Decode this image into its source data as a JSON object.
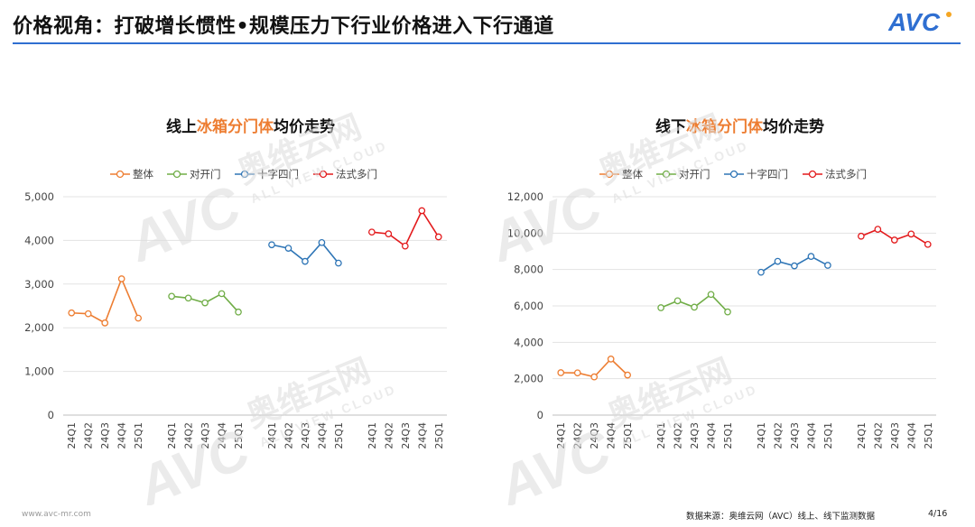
{
  "header": {
    "title": "价格视角：打破增长惯性•规模压力下行业价格进入下行通道",
    "logo_text": "AVC"
  },
  "watermark": {
    "brand_cn": "奥维云网",
    "brand_en": "ALL VIEW CLOUD",
    "logo_text": "AVC"
  },
  "footer": {
    "website": "www.avc-mr.com",
    "source": "数据来源：奥维云网（AVC）线上、线下监测数据",
    "page": "4/16"
  },
  "colors": {
    "accent_blue": "#2f6fd1",
    "series": [
      "#ed7d31",
      "#70ad47",
      "#2e75b6",
      "#e31a1c"
    ],
    "title_highlight": "#ed7d31"
  },
  "chart_data": [
    {
      "type": "line",
      "title_parts": [
        "线上",
        "冰箱分门体",
        "均价走势"
      ],
      "categories": [
        "24Q1",
        "24Q2",
        "24Q3",
        "24Q4",
        "25Q1"
      ],
      "ylim": [
        0,
        5000
      ],
      "yticks": [
        0,
        1000,
        2000,
        3000,
        4000,
        5000
      ],
      "ytick_labels": [
        "0",
        "1,000",
        "2,000",
        "3,000",
        "4,000",
        "5,000"
      ],
      "grid": true,
      "legend": "top",
      "series": [
        {
          "name": "整体",
          "values": [
            2340,
            2320,
            2110,
            3120,
            2220
          ]
        },
        {
          "name": "对开门",
          "values": [
            2720,
            2680,
            2570,
            2780,
            2360
          ]
        },
        {
          "name": "十字四门",
          "values": [
            3900,
            3820,
            3520,
            3950,
            3480
          ]
        },
        {
          "name": "法式多门",
          "values": [
            4190,
            4150,
            3870,
            4680,
            4080
          ]
        }
      ]
    },
    {
      "type": "line",
      "title_parts": [
        "线下",
        "冰箱分门体",
        "均价走势"
      ],
      "categories": [
        "24Q1",
        "24Q2",
        "24Q3",
        "24Q4",
        "25Q1"
      ],
      "ylim": [
        0,
        12000
      ],
      "yticks": [
        0,
        2000,
        4000,
        6000,
        8000,
        10000,
        12000
      ],
      "ytick_labels": [
        "0",
        "2,000",
        "4,000",
        "6,000",
        "8,000",
        "10,000",
        "12,000"
      ],
      "grid": true,
      "legend": "top",
      "series": [
        {
          "name": "整体",
          "values": [
            2330,
            2320,
            2100,
            3080,
            2200
          ]
        },
        {
          "name": "对开门",
          "values": [
            5900,
            6280,
            5930,
            6630,
            5670
          ]
        },
        {
          "name": "十字四门",
          "values": [
            7850,
            8450,
            8200,
            8720,
            8230
          ]
        },
        {
          "name": "法式多门",
          "values": [
            9830,
            10210,
            9620,
            9950,
            9380
          ]
        }
      ]
    }
  ]
}
